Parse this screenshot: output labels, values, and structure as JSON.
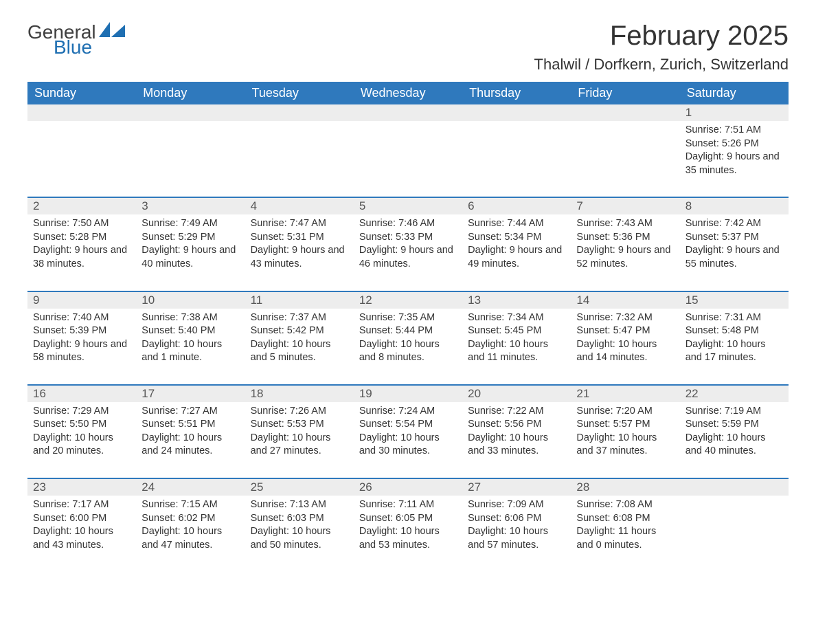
{
  "logo": {
    "text1": "General",
    "text2": "Blue"
  },
  "title": "February 2025",
  "location": "Thalwil / Dorfkern, Zurich, Switzerland",
  "colors": {
    "header_bg": "#2f79bd",
    "header_text": "#ffffff",
    "daynum_bg": "#ededed",
    "row_border": "#2f79bd",
    "logo_gray": "#404040",
    "logo_blue": "#1f6fb2"
  },
  "day_headers": [
    "Sunday",
    "Monday",
    "Tuesday",
    "Wednesday",
    "Thursday",
    "Friday",
    "Saturday"
  ],
  "weeks": [
    [
      {
        "day": "",
        "lines": []
      },
      {
        "day": "",
        "lines": []
      },
      {
        "day": "",
        "lines": []
      },
      {
        "day": "",
        "lines": []
      },
      {
        "day": "",
        "lines": []
      },
      {
        "day": "",
        "lines": []
      },
      {
        "day": "1",
        "lines": [
          "Sunrise: 7:51 AM",
          "Sunset: 5:26 PM",
          "Daylight: 9 hours and 35 minutes."
        ]
      }
    ],
    [
      {
        "day": "2",
        "lines": [
          "Sunrise: 7:50 AM",
          "Sunset: 5:28 PM",
          "Daylight: 9 hours and 38 minutes."
        ]
      },
      {
        "day": "3",
        "lines": [
          "Sunrise: 7:49 AM",
          "Sunset: 5:29 PM",
          "Daylight: 9 hours and 40 minutes."
        ]
      },
      {
        "day": "4",
        "lines": [
          "Sunrise: 7:47 AM",
          "Sunset: 5:31 PM",
          "Daylight: 9 hours and 43 minutes."
        ]
      },
      {
        "day": "5",
        "lines": [
          "Sunrise: 7:46 AM",
          "Sunset: 5:33 PM",
          "Daylight: 9 hours and 46 minutes."
        ]
      },
      {
        "day": "6",
        "lines": [
          "Sunrise: 7:44 AM",
          "Sunset: 5:34 PM",
          "Daylight: 9 hours and 49 minutes."
        ]
      },
      {
        "day": "7",
        "lines": [
          "Sunrise: 7:43 AM",
          "Sunset: 5:36 PM",
          "Daylight: 9 hours and 52 minutes."
        ]
      },
      {
        "day": "8",
        "lines": [
          "Sunrise: 7:42 AM",
          "Sunset: 5:37 PM",
          "Daylight: 9 hours and 55 minutes."
        ]
      }
    ],
    [
      {
        "day": "9",
        "lines": [
          "Sunrise: 7:40 AM",
          "Sunset: 5:39 PM",
          "Daylight: 9 hours and 58 minutes."
        ]
      },
      {
        "day": "10",
        "lines": [
          "Sunrise: 7:38 AM",
          "Sunset: 5:40 PM",
          "Daylight: 10 hours and 1 minute."
        ]
      },
      {
        "day": "11",
        "lines": [
          "Sunrise: 7:37 AM",
          "Sunset: 5:42 PM",
          "Daylight: 10 hours and 5 minutes."
        ]
      },
      {
        "day": "12",
        "lines": [
          "Sunrise: 7:35 AM",
          "Sunset: 5:44 PM",
          "Daylight: 10 hours and 8 minutes."
        ]
      },
      {
        "day": "13",
        "lines": [
          "Sunrise: 7:34 AM",
          "Sunset: 5:45 PM",
          "Daylight: 10 hours and 11 minutes."
        ]
      },
      {
        "day": "14",
        "lines": [
          "Sunrise: 7:32 AM",
          "Sunset: 5:47 PM",
          "Daylight: 10 hours and 14 minutes."
        ]
      },
      {
        "day": "15",
        "lines": [
          "Sunrise: 7:31 AM",
          "Sunset: 5:48 PM",
          "Daylight: 10 hours and 17 minutes."
        ]
      }
    ],
    [
      {
        "day": "16",
        "lines": [
          "Sunrise: 7:29 AM",
          "Sunset: 5:50 PM",
          "Daylight: 10 hours and 20 minutes."
        ]
      },
      {
        "day": "17",
        "lines": [
          "Sunrise: 7:27 AM",
          "Sunset: 5:51 PM",
          "Daylight: 10 hours and 24 minutes."
        ]
      },
      {
        "day": "18",
        "lines": [
          "Sunrise: 7:26 AM",
          "Sunset: 5:53 PM",
          "Daylight: 10 hours and 27 minutes."
        ]
      },
      {
        "day": "19",
        "lines": [
          "Sunrise: 7:24 AM",
          "Sunset: 5:54 PM",
          "Daylight: 10 hours and 30 minutes."
        ]
      },
      {
        "day": "20",
        "lines": [
          "Sunrise: 7:22 AM",
          "Sunset: 5:56 PM",
          "Daylight: 10 hours and 33 minutes."
        ]
      },
      {
        "day": "21",
        "lines": [
          "Sunrise: 7:20 AM",
          "Sunset: 5:57 PM",
          "Daylight: 10 hours and 37 minutes."
        ]
      },
      {
        "day": "22",
        "lines": [
          "Sunrise: 7:19 AM",
          "Sunset: 5:59 PM",
          "Daylight: 10 hours and 40 minutes."
        ]
      }
    ],
    [
      {
        "day": "23",
        "lines": [
          "Sunrise: 7:17 AM",
          "Sunset: 6:00 PM",
          "Daylight: 10 hours and 43 minutes."
        ]
      },
      {
        "day": "24",
        "lines": [
          "Sunrise: 7:15 AM",
          "Sunset: 6:02 PM",
          "Daylight: 10 hours and 47 minutes."
        ]
      },
      {
        "day": "25",
        "lines": [
          "Sunrise: 7:13 AM",
          "Sunset: 6:03 PM",
          "Daylight: 10 hours and 50 minutes."
        ]
      },
      {
        "day": "26",
        "lines": [
          "Sunrise: 7:11 AM",
          "Sunset: 6:05 PM",
          "Daylight: 10 hours and 53 minutes."
        ]
      },
      {
        "day": "27",
        "lines": [
          "Sunrise: 7:09 AM",
          "Sunset: 6:06 PM",
          "Daylight: 10 hours and 57 minutes."
        ]
      },
      {
        "day": "28",
        "lines": [
          "Sunrise: 7:08 AM",
          "Sunset: 6:08 PM",
          "Daylight: 11 hours and 0 minutes."
        ]
      },
      {
        "day": "",
        "lines": []
      }
    ]
  ]
}
